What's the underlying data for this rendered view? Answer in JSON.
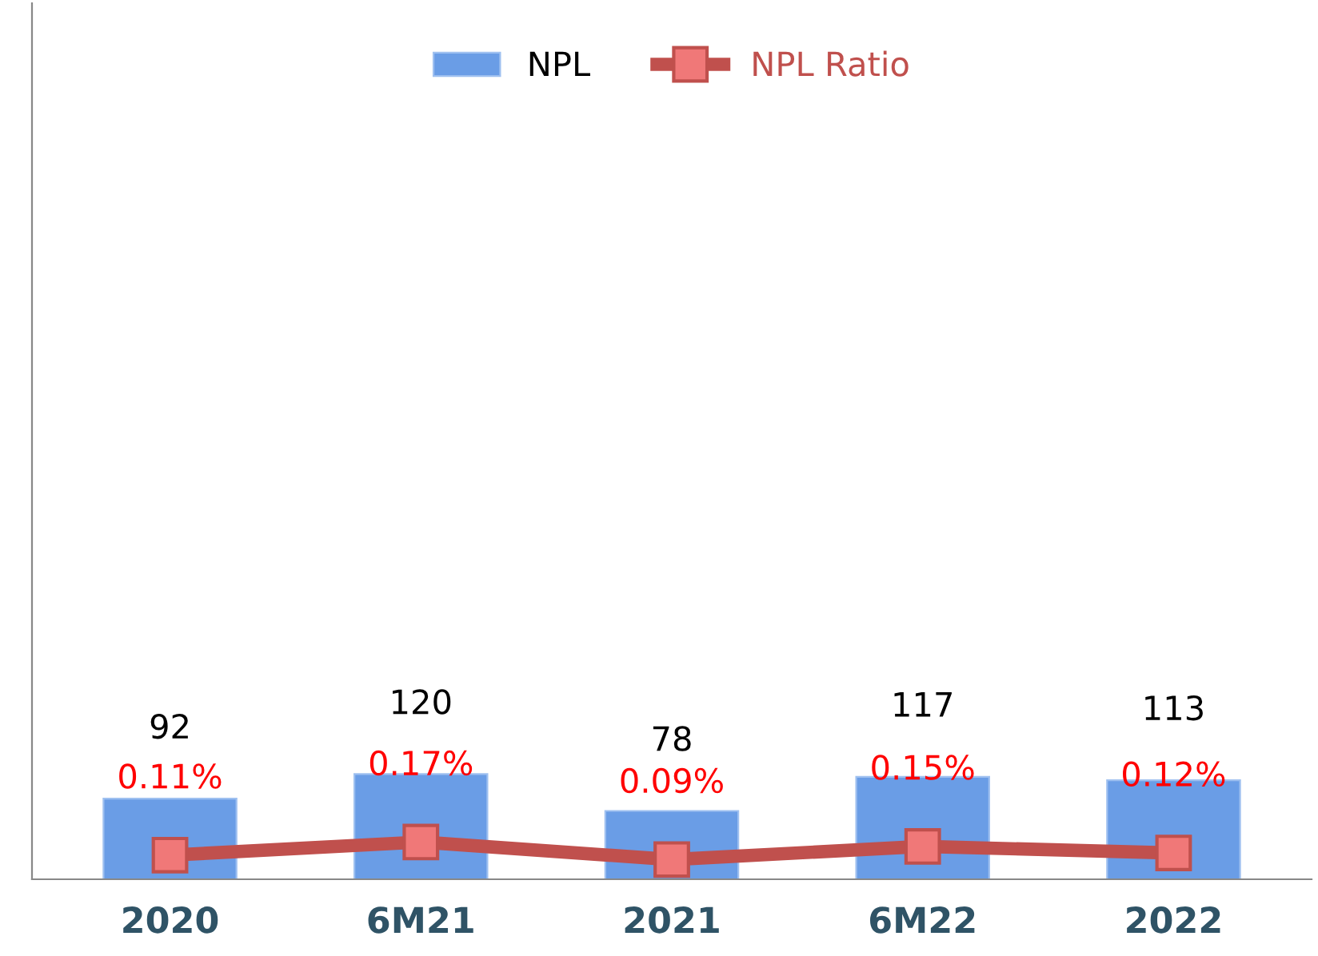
{
  "chart_data": {
    "type": "bar",
    "categories": [
      "2020",
      "6M21",
      "2021",
      "6M22",
      "2022"
    ],
    "series": [
      {
        "name": "NPL",
        "color": "#6a9de6",
        "values": [
          92,
          120,
          78,
          117,
          113
        ]
      },
      {
        "name": "NPL Ratio",
        "type": "line",
        "axis": "y2",
        "color": "#c0504d",
        "values": [
          0.11,
          0.17,
          0.09,
          0.15,
          0.12
        ],
        "value_labels": [
          "0.11%",
          "0.17%",
          "0.09%",
          "0.15%",
          "0.12%"
        ],
        "marker": "square"
      }
    ],
    "data_labels": true,
    "ylim": [
      0,
      1000
    ],
    "y2lim": [
      0,
      4
    ],
    "tick_labels": "x",
    "grid": false,
    "legend": "top"
  }
}
